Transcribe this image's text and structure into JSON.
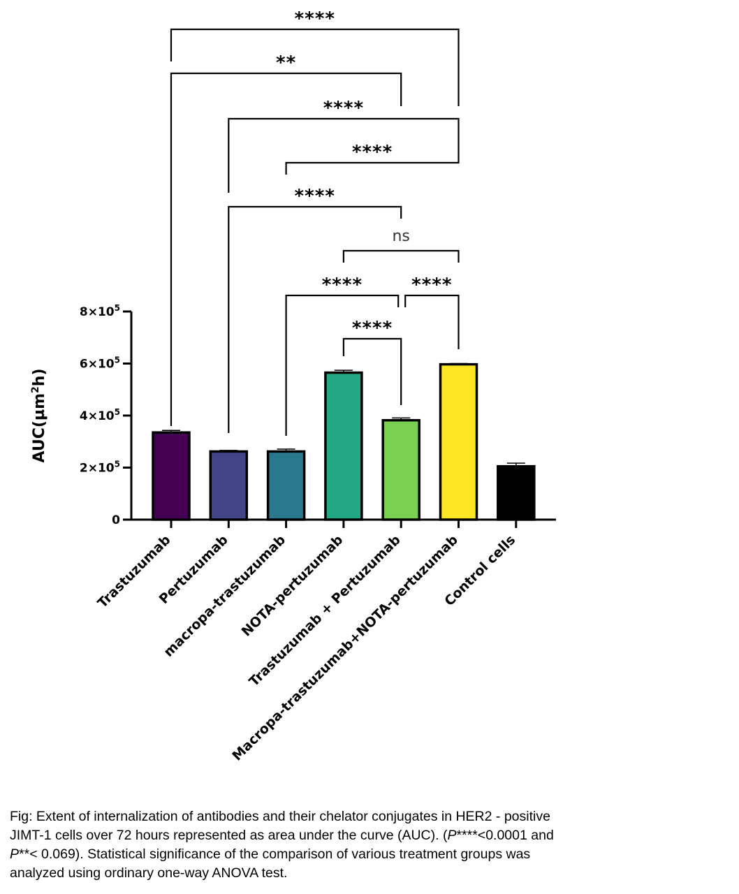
{
  "chart_data": {
    "type": "bar",
    "ylabel_prefix": "AUC(µm",
    "ylabel_sup": "2",
    "ylabel_suffix": "h)",
    "ylim": [
      0,
      800000
    ],
    "yticks": [
      {
        "value": 0,
        "mant": "0",
        "exp": ""
      },
      {
        "value": 200000,
        "mant": "2×10",
        "exp": "5"
      },
      {
        "value": 400000,
        "mant": "4×10",
        "exp": "5"
      },
      {
        "value": 600000,
        "mant": "6×10",
        "exp": "5"
      },
      {
        "value": 800000,
        "mant": "8×10",
        "exp": "5"
      }
    ],
    "categories": [
      "Trastuzumab",
      "Pertuzumab",
      "macropa-trastuzumab",
      "NOTA-pertuzumab",
      "Trastuzumab + Pertuzumab",
      "Macropa-trastuzumab+NOTA-pertuzumab",
      "Control cells"
    ],
    "values": [
      335000,
      262000,
      262000,
      565000,
      382000,
      597000,
      205000
    ],
    "errors": [
      8000,
      4000,
      9000,
      9000,
      9000,
      3000,
      12000
    ],
    "colors": [
      "#440154",
      "#414487",
      "#2a788e",
      "#22a884",
      "#7ad151",
      "#fde725",
      "#000000"
    ],
    "significance": [
      {
        "from": 0,
        "to": 5,
        "label": "****"
      },
      {
        "from": 0,
        "to": 4,
        "label": "**"
      },
      {
        "from": 1,
        "to": 5,
        "label": "****"
      },
      {
        "from": 2,
        "to": 5,
        "label": "****"
      },
      {
        "from": 1,
        "to": 4,
        "label": "****"
      },
      {
        "from": 3,
        "to": 5,
        "label": "ns"
      },
      {
        "from": 2,
        "to": 4,
        "label": "****"
      },
      {
        "from": 4,
        "to": 5,
        "label": "****"
      },
      {
        "from": 3,
        "to": 4,
        "label": "****"
      }
    ]
  },
  "caption": {
    "line1": "Fig: Extent of internalization of antibodies and their chelator conjugates in HER2 - positive",
    "line2a": "JIMT-1 cells over 72 hours represented as area under the curve (AUC). (",
    "p1": "P",
    "line2b": "****<0.0001 and",
    "p2": "P",
    "line3a": "**< 0.069). Statistical significance of the comparison of various treatment groups was",
    "line4": "analyzed using ordinary one-way ANOVA test."
  }
}
